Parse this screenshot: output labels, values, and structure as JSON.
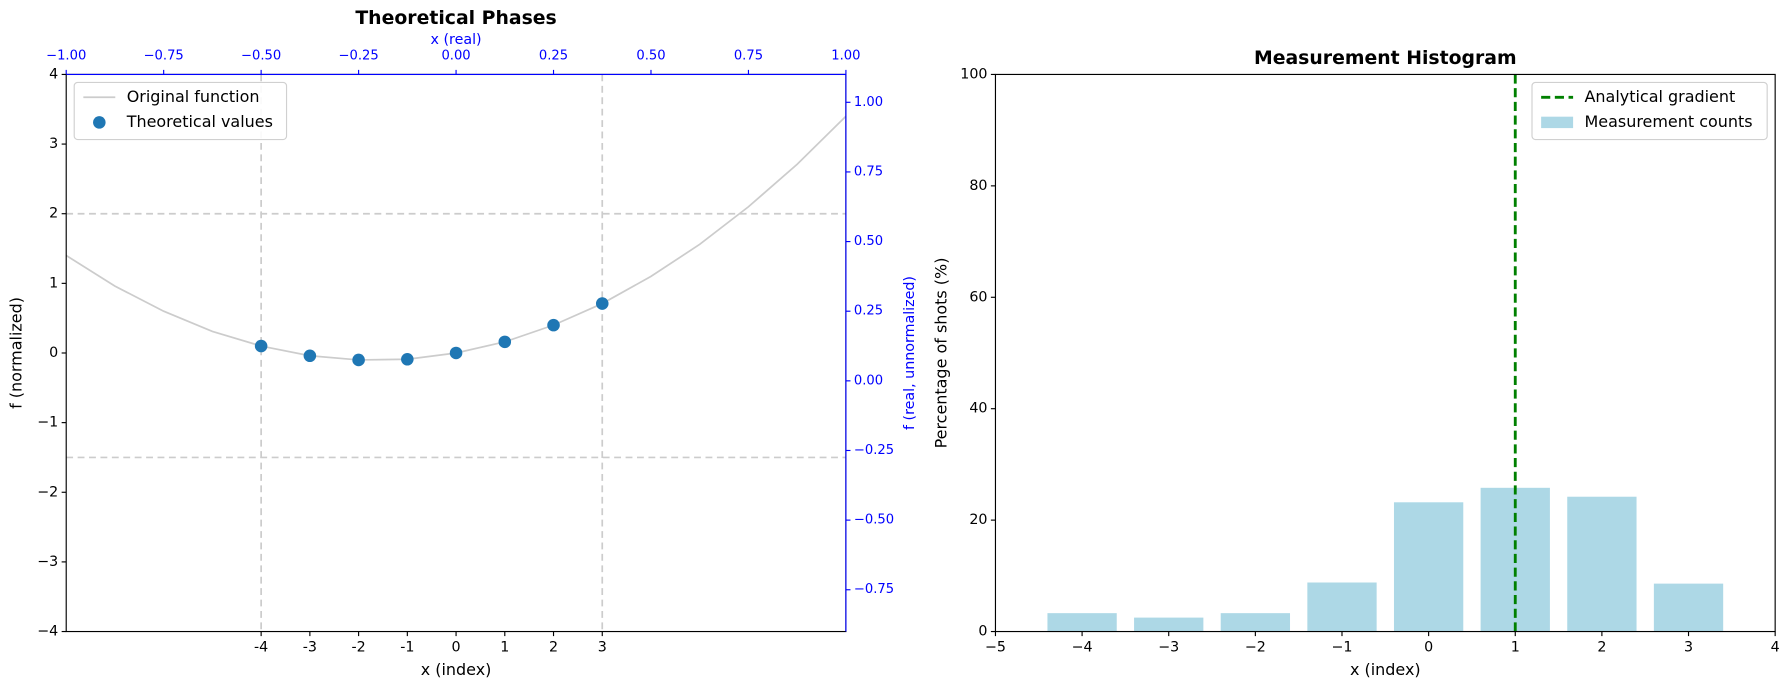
{
  "chart_data": [
    {
      "type": "line",
      "title": "Theoretical Phases",
      "xlabel": "x (index)",
      "ylabel": "f (normalized)",
      "x2label": "x (real)",
      "y2label": "f (real, unnormalized)",
      "secondary_color": "#0000ff",
      "xlim": [
        -8,
        8
      ],
      "xticks": [
        -4,
        -3,
        -2,
        -1,
        0,
        1,
        2,
        3
      ],
      "x2lim": [
        -1,
        1
      ],
      "x2ticks": [
        {
          "value": -1,
          "label": "−1.00"
        },
        {
          "value": -0.75,
          "label": "−0.75"
        },
        {
          "value": -0.5,
          "label": "−0.50"
        },
        {
          "value": -0.25,
          "label": "−0.25"
        },
        {
          "value": 0,
          "label": "0.00"
        },
        {
          "value": 0.25,
          "label": "0.25"
        },
        {
          "value": 0.5,
          "label": "0.50"
        },
        {
          "value": 0.75,
          "label": "0.75"
        },
        {
          "value": 1,
          "label": "1.00"
        }
      ],
      "ylim": [
        -4,
        4
      ],
      "yticks": [
        {
          "value": -4,
          "label": "−4"
        },
        {
          "value": -3,
          "label": "−3"
        },
        {
          "value": -2,
          "label": "−2"
        },
        {
          "value": -1,
          "label": "−1"
        },
        0,
        1,
        2,
        3,
        4
      ],
      "y2lim": [
        -0.9,
        1.1
      ],
      "y2ticks": [
        {
          "value": -0.75,
          "label": "−0.75"
        },
        {
          "value": -0.5,
          "label": "−0.50"
        },
        {
          "value": -0.25,
          "label": "−0.25"
        },
        {
          "value": 0,
          "label": "0.00"
        },
        {
          "value": 0.25,
          "label": "0.25"
        },
        {
          "value": 0.5,
          "label": "0.50"
        },
        {
          "value": 0.75,
          "label": "0.75"
        },
        {
          "value": 1,
          "label": "1.00"
        }
      ],
      "hlines": [
        2,
        -1.5
      ],
      "vlines": [
        -4,
        3
      ],
      "legend": "upper left",
      "series": [
        {
          "name": "Original function",
          "kind": "line",
          "color": "#cccccc",
          "x": [
            -8,
            -7,
            -6,
            -5,
            -4,
            -3,
            -2,
            -1,
            0,
            1,
            2,
            3,
            4,
            5,
            6,
            7,
            8
          ],
          "values": [
            1.4,
            0.96,
            0.6,
            0.31,
            0.1,
            -0.04,
            -0.1,
            -0.09,
            0,
            0.16,
            0.4,
            0.71,
            1.1,
            1.56,
            2.1,
            2.71,
            3.4
          ]
        },
        {
          "name": "Theoretical values",
          "kind": "scatter",
          "color": "#1f77b4",
          "x": [
            -4,
            -3,
            -2,
            -1,
            0,
            1,
            2,
            3
          ],
          "values": [
            0.1,
            -0.04,
            -0.1,
            -0.09,
            0,
            0.16,
            0.4,
            0.71
          ]
        }
      ]
    },
    {
      "type": "bar",
      "title": "Measurement Histogram",
      "xlabel": "x (index)",
      "ylabel": "Percentage of shots (%)",
      "xlim": [
        -5,
        4
      ],
      "xticks": [
        {
          "value": -5,
          "label": "−5"
        },
        {
          "value": -4,
          "label": "−4"
        },
        {
          "value": -3,
          "label": "−3"
        },
        {
          "value": -2,
          "label": "−2"
        },
        {
          "value": -1,
          "label": "−1"
        },
        0,
        1,
        2,
        3,
        4
      ],
      "ylim": [
        0,
        100
      ],
      "yticks": [
        0,
        20,
        40,
        60,
        80,
        100
      ],
      "legend": "upper right",
      "vline": {
        "name": "Analytical gradient",
        "value": 1,
        "color": "#008000"
      },
      "series": [
        {
          "name": "Measurement counts",
          "color": "#add8e6",
          "x": [
            -4,
            -3,
            -2,
            -1,
            0,
            1,
            2,
            3
          ],
          "values": [
            3.3,
            2.5,
            3.3,
            8.8,
            23.2,
            25.8,
            24.2,
            8.6
          ]
        }
      ]
    }
  ]
}
